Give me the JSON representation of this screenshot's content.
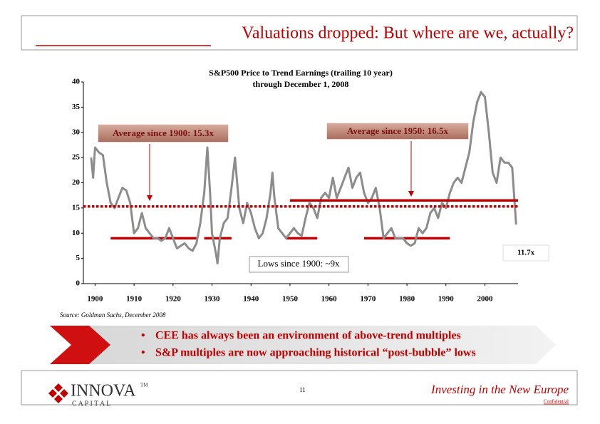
{
  "header": {
    "title": "Valuations dropped: But where are we, actually?"
  },
  "chart_data": {
    "type": "line",
    "title": "S&P500 Price to Trend Earnings (trailing 10 year)",
    "subtitle": "through December 1, 2008",
    "color": "#8c8c8c",
    "x": [
      1899,
      1899.5,
      1900,
      1901,
      1902,
      1903,
      1904,
      1905,
      1906,
      1907,
      1908,
      1909,
      1910,
      1911,
      1912,
      1913,
      1914,
      1915,
      1916,
      1917,
      1918,
      1919,
      1920,
      1921,
      1922,
      1923,
      1924,
      1925,
      1926,
      1927,
      1928,
      1928.8,
      1929.5,
      1930,
      1931,
      1931.4,
      1932,
      1933,
      1934,
      1935,
      1935.9,
      1937,
      1938,
      1939,
      1940,
      1941,
      1942,
      1943,
      1944,
      1945,
      1945.5,
      1946,
      1947,
      1948,
      1949,
      1950,
      1951,
      1952,
      1953,
      1954,
      1955,
      1956,
      1957,
      1958,
      1959,
      1960,
      1961,
      1962,
      1963,
      1964,
      1965,
      1966,
      1967,
      1968,
      1969,
      1970,
      1971,
      1972,
      1973,
      1974,
      1975,
      1976,
      1977,
      1978,
      1979,
      1980,
      1981,
      1982,
      1983,
      1984,
      1985,
      1986,
      1987,
      1988,
      1989,
      1990,
      1991,
      1992,
      1993,
      1994,
      1995,
      1996,
      1997,
      1998,
      1999,
      2000,
      2001,
      2002,
      2003,
      2004,
      2005,
      2006,
      2007,
      2008
    ],
    "values": [
      25,
      21,
      27,
      26,
      25.5,
      20,
      16,
      15,
      17,
      19,
      18.5,
      16,
      10,
      11,
      14,
      11,
      10,
      9,
      9,
      8.5,
      9,
      11,
      9,
      7,
      7.5,
      8,
      7,
      6.5,
      8,
      12,
      18,
      27,
      18,
      10,
      6,
      4,
      9,
      12,
      13,
      19,
      25,
      15,
      12,
      16,
      14,
      11,
      9,
      10,
      13,
      18,
      22,
      17,
      11,
      10,
      9,
      10,
      11,
      10,
      9.5,
      13,
      16,
      15,
      13,
      17,
      18,
      17,
      21,
      17,
      19,
      21,
      23,
      19,
      21,
      22,
      18,
      16,
      17,
      19,
      15,
      9,
      10,
      11,
      9,
      9,
      9,
      8,
      7.5,
      8,
      11,
      10,
      11,
      14,
      15,
      13,
      16,
      15,
      18,
      20,
      21,
      20,
      23,
      26,
      32,
      36,
      38,
      37,
      30,
      22,
      20,
      25,
      24,
      24,
      23,
      11.7
    ],
    "end_label": "11.7x",
    "xlim": [
      1897,
      2008.5
    ],
    "xticks": [
      1900,
      1910,
      1920,
      1930,
      1940,
      1950,
      1960,
      1970,
      1980,
      1990,
      2000
    ],
    "ylim": [
      0,
      40
    ],
    "yticks": [
      0,
      5,
      10,
      15,
      20,
      25,
      30,
      35,
      40
    ],
    "reference_lines": [
      {
        "label": "Average since 1900: 15.3x",
        "value": 15.3,
        "x": [
          1897,
          2008.5
        ],
        "style": "dotted",
        "color": "#c00000"
      },
      {
        "label": "Average since 1950: 16.5x",
        "value": 16.5,
        "x": [
          1950,
          2008.5
        ],
        "style": "solid",
        "color": "#c00000"
      }
    ],
    "lows": {
      "label": "Lows since 1900: ~9x",
      "value": 9,
      "color": "#c00000",
      "ranges": [
        [
          1904,
          1926
        ],
        [
          1928,
          1935
        ],
        [
          1949,
          1957
        ],
        [
          1969,
          1991
        ]
      ]
    }
  },
  "source": "Source: Goldman Sachs, December 2008",
  "bullets": [
    "CEE has always been an environment of above-trend multiples",
    "S&P multiples are now approaching historical “post-bubble” lows"
  ],
  "footer": {
    "logo": "INNOVA",
    "logo_sub": "C A P I T A L",
    "logo_mark": "TM",
    "page": "11",
    "tagline": "Investing in the New Europe",
    "note": "Confidential"
  }
}
